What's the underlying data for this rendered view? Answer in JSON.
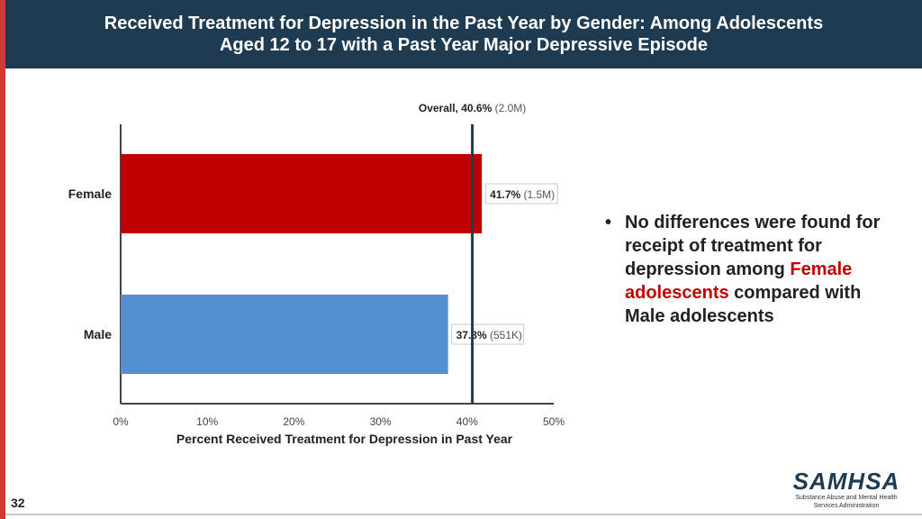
{
  "title": {
    "line1": "Received Treatment for Depression in the Past Year by Gender: Among Adolescents",
    "line2": "Aged 12 to 17 with a Past Year Major Depressive Episode"
  },
  "chart_data": {
    "type": "bar",
    "orientation": "horizontal",
    "categories": [
      "Female",
      "Male"
    ],
    "values": [
      41.7,
      37.8
    ],
    "value_labels": [
      "41.7%",
      "37.8%"
    ],
    "count_labels": [
      "(1.5M)",
      "(551K)"
    ],
    "bar_colors": [
      "#c00000",
      "#5390d0"
    ],
    "reference_line": {
      "value": 40.6,
      "label": "Overall, 40.6%",
      "count": "(2.0M)"
    },
    "xlim": [
      0,
      50
    ],
    "ticks": [
      0,
      10,
      20,
      30,
      40,
      50
    ],
    "tick_labels": [
      "0%",
      "10%",
      "20%",
      "30%",
      "40%",
      "50%"
    ],
    "xlabel": "Percent Received Treatment for Depression in Past Year"
  },
  "bullet": {
    "before": "No differences were found for receipt of treatment for depression among ",
    "highlight": "Female adolescents",
    "after": " compared with Male adolescents"
  },
  "slide_number": "32",
  "logo": {
    "mark": "SAMHSA",
    "sub1": "Substance Abuse and Mental Health",
    "sub2": "Services Administration"
  }
}
